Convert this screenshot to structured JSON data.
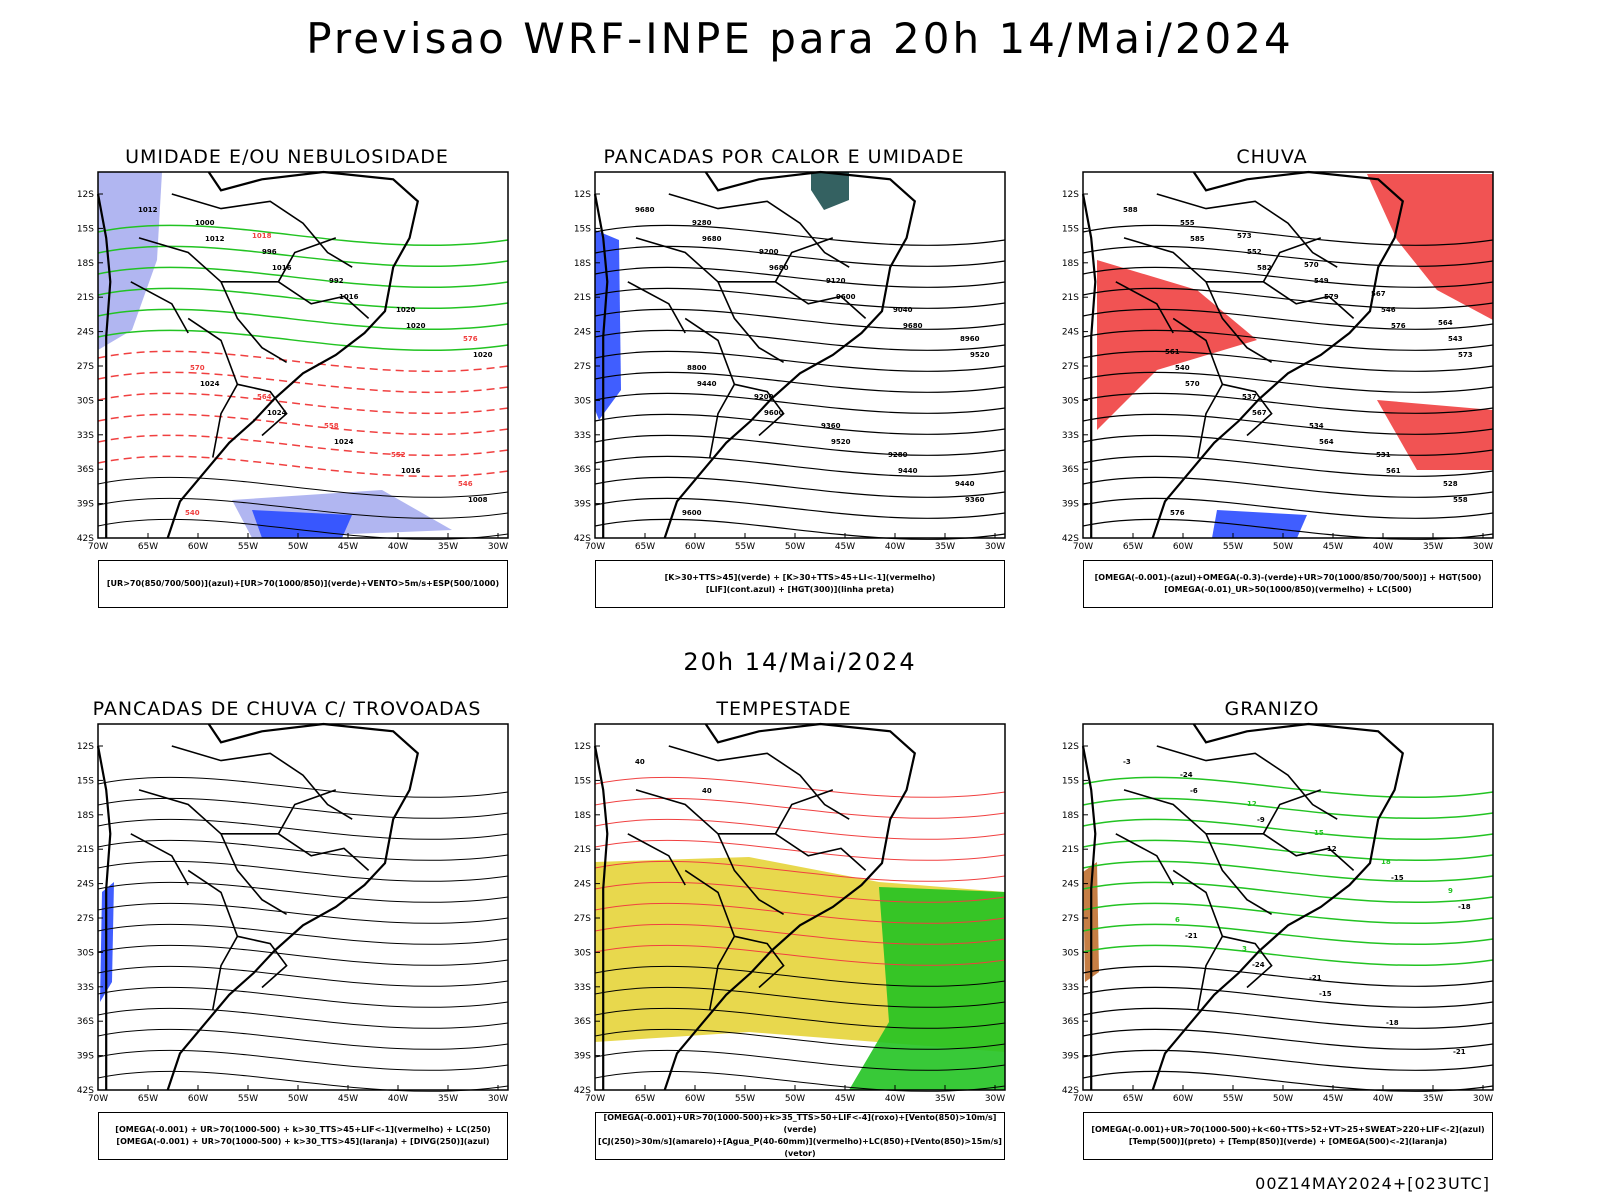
{
  "header": {
    "title": "Previsao WRF-INPE  para 20h 14/Mai/2024"
  },
  "middle": {
    "title": "20h 14/Mai/2024"
  },
  "footer": {
    "run": "00Z14MAY2024+[023UTC]"
  },
  "axes": {
    "lat_labels": [
      "12S",
      "15S",
      "18S",
      "21S",
      "24S",
      "27S",
      "30S",
      "33S",
      "36S",
      "39S",
      "42S"
    ],
    "lon_labels": [
      "70W",
      "65W",
      "60W",
      "55W",
      "50W",
      "45W",
      "40W",
      "35W",
      "30W"
    ]
  },
  "colors": {
    "green": "#22c322",
    "red": "#f04040",
    "blue": "#2b4cff",
    "lightblue": "#a8aef0",
    "yellow": "#e6d43a",
    "darkteal": "#1e5050",
    "orange": "#f07a1a"
  },
  "panels": [
    {
      "title": "UMIDADE E/OU NEBULOSIDADE",
      "legend": [
        "[UR>70(850/700/500)](azul)+[UR>70(1000/850)](verde)+VENTO>5m/s+ESP(500/1000)"
      ],
      "labels": [
        "1012",
        "1012",
        "1016",
        "1016",
        "1020",
        "1020",
        "1024",
        "1024",
        "1024",
        "1016",
        "1008",
        "1000",
        "996",
        "992",
        "1020",
        "576",
        "570",
        "564",
        "558",
        "552",
        "546",
        "540",
        "1018"
      ]
    },
    {
      "title": "PANCADAS POR CALOR E UMIDADE",
      "legend": [
        "[K>30+TTS>45](verde) + [K>30+TTS>45+LI<-1](vermelho)",
        "[LIF](cont.azul) + [HGT(300)](linha preta)"
      ],
      "labels": [
        "9680",
        "9680",
        "9680",
        "9600",
        "9680",
        "9520",
        "9440",
        "9600",
        "9520",
        "9440",
        "9360",
        "9280",
        "9200",
        "9120",
        "9040",
        "8960",
        "8800",
        "9200",
        "9360",
        "9280",
        "9440",
        "9600"
      ]
    },
    {
      "title": "CHUVA",
      "legend": [
        "[OMEGA(-0.001)-(azul)+OMEGA(-0.3)-(verde)+UR>70(1000/850/700/500)] + HGT(500)",
        "[OMEGA(-0.01)_UR>50(1000/850)(vermelho) + LC(500)"
      ],
      "labels": [
        "588",
        "585",
        "582",
        "579",
        "576",
        "573",
        "570",
        "567",
        "564",
        "561",
        "558",
        "555",
        "552",
        "549",
        "546",
        "543",
        "540",
        "537",
        "534",
        "531",
        "528",
        "576",
        "573",
        "570",
        "567",
        "564",
        "561"
      ]
    },
    {
      "title": "PANCADAS DE CHUVA C/ TROVOADAS",
      "legend": [
        "[OMEGA(-0.001) + UR>70(1000-500) + k>30_TTS>45+LIF<-1](vermelho) + LC(250)",
        "[OMEGA(-0.001) + UR>70(1000-500) + k>30_TTS>45](laranja) + [DIVG(250)](azul)"
      ],
      "labels": []
    },
    {
      "title": "TEMPESTADE",
      "legend": [
        "[OMEGA(-0.001)+UR>70(1000-500)+k>35_TTS>50+LIF<-4](roxo)+[Vento(850)>10m/s](verde)",
        "[CJ(250)>30m/s](amarelo)+[Agua_P(40-60mm)](vermelho)+LC(850)+[Vento(850)>15m/s](vetor)"
      ],
      "labels": [
        "40",
        "40"
      ]
    },
    {
      "title": "GRANIZO",
      "legend": [
        "[OMEGA(-0.001)+UR>70(1000-500)+k<60+TTS>52+VT>25+SWEAT>220+LIF<-2](azul)",
        "[Temp(500)](preto) + [Temp(850)](verde) + [OMEGA(500)<-2](laranja)"
      ],
      "labels": [
        "-3",
        "-6",
        "-9",
        "-12",
        "-15",
        "-18",
        "-21",
        "-24",
        "-15",
        "-18",
        "-21",
        "-24",
        "12",
        "15",
        "18",
        "9",
        "6",
        "3",
        "-21"
      ]
    }
  ]
}
